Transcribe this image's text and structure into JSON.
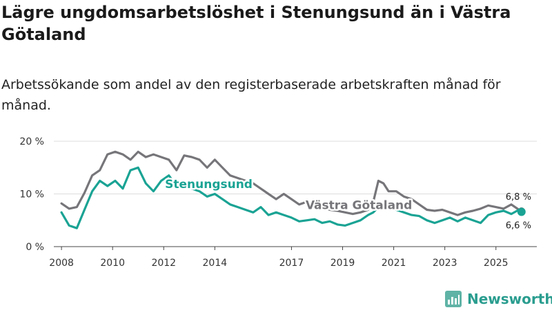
{
  "header": {
    "title": "Lägre ungdomsarbetslöshet i Stenungsund än i Västra Götaland",
    "subtitle": "Arbetssökande som andel av den registerbaserade arbetskraften månad för månad."
  },
  "brand": {
    "name": "Newsworthy"
  },
  "colors": {
    "stenungsund": "#1aa394",
    "vastra": "#76767a",
    "grid": "#dcdcdc",
    "brand": "#2a9d8f"
  },
  "chart_data": {
    "type": "line",
    "title": "Lägre ungdomsarbetslöshet i Stenungsund än i Västra Götaland",
    "xlabel": "",
    "ylabel": "",
    "unit": "%",
    "xlim": [
      2007.7,
      2026.6
    ],
    "ylim": [
      0,
      20
    ],
    "x_ticks": [
      2008,
      2010,
      2012,
      2014,
      2017,
      2019,
      2021,
      2023,
      2025
    ],
    "x_tick_labels": [
      "2008",
      "2010",
      "2012",
      "2014",
      "2017",
      "2019",
      "2021",
      "2023",
      "2025"
    ],
    "y_ticks": [
      0,
      10,
      20
    ],
    "y_tick_labels": [
      "0 %",
      "10 %",
      "20 %"
    ],
    "grid": true,
    "series": [
      {
        "name": "Västra Götaland",
        "label": "Västra Götaland",
        "end_label": "6,8 %",
        "end_value": 6.8,
        "x": [
          2008.0,
          2008.3,
          2008.6,
          2008.9,
          2009.2,
          2009.5,
          2009.8,
          2010.1,
          2010.4,
          2010.7,
          2011.0,
          2011.3,
          2011.6,
          2011.9,
          2012.2,
          2012.5,
          2012.8,
          2013.1,
          2013.4,
          2013.7,
          2014.0,
          2014.3,
          2014.6,
          2014.9,
          2015.2,
          2015.5,
          2015.8,
          2016.1,
          2016.4,
          2016.7,
          2017.0,
          2017.3,
          2017.6,
          2017.9,
          2018.2,
          2018.5,
          2018.8,
          2019.1,
          2019.4,
          2019.7,
          2020.0,
          2020.2,
          2020.4,
          2020.6,
          2020.8,
          2021.1,
          2021.4,
          2021.7,
          2022.0,
          2022.3,
          2022.6,
          2022.9,
          2023.2,
          2023.5,
          2023.8,
          2024.1,
          2024.4,
          2024.7,
          2025.0,
          2025.3,
          2025.6,
          2025.9,
          2026.0
        ],
        "values": [
          8.2,
          7.2,
          7.5,
          10.2,
          13.5,
          14.5,
          17.5,
          18.0,
          17.5,
          16.5,
          18.0,
          17.0,
          17.5,
          17.0,
          16.5,
          14.5,
          17.3,
          17.0,
          16.5,
          15.0,
          16.5,
          15.0,
          13.5,
          13.0,
          12.5,
          12.0,
          11.0,
          10.0,
          9.0,
          10.0,
          9.0,
          8.0,
          8.5,
          8.0,
          7.5,
          7.0,
          6.8,
          6.5,
          6.2,
          6.5,
          7.0,
          8.5,
          12.5,
          12.0,
          10.5,
          10.5,
          9.5,
          9.0,
          8.0,
          7.0,
          6.8,
          7.0,
          6.5,
          6.0,
          6.5,
          6.8,
          7.2,
          7.8,
          7.5,
          7.2,
          8.0,
          7.0,
          6.8
        ]
      },
      {
        "name": "Stenungsund",
        "label": "Stenungsund",
        "end_label": "6,6 %",
        "end_value": 6.6,
        "x": [
          2008.0,
          2008.3,
          2008.6,
          2008.9,
          2009.2,
          2009.5,
          2009.8,
          2010.1,
          2010.4,
          2010.7,
          2011.0,
          2011.3,
          2011.6,
          2011.9,
          2012.2,
          2012.5,
          2012.8,
          2013.1,
          2013.4,
          2013.7,
          2014.0,
          2014.3,
          2014.6,
          2014.9,
          2015.2,
          2015.5,
          2015.8,
          2016.1,
          2016.4,
          2016.7,
          2017.0,
          2017.3,
          2017.6,
          2017.9,
          2018.2,
          2018.5,
          2018.8,
          2019.1,
          2019.4,
          2019.7,
          2020.0,
          2020.2,
          2020.4,
          2020.6,
          2020.8,
          2021.1,
          2021.4,
          2021.7,
          2022.0,
          2022.3,
          2022.6,
          2022.9,
          2023.2,
          2023.5,
          2023.8,
          2024.1,
          2024.4,
          2024.7,
          2025.0,
          2025.3,
          2025.6,
          2025.9,
          2026.0
        ],
        "values": [
          6.5,
          4.0,
          3.5,
          7.0,
          10.5,
          12.5,
          11.5,
          12.5,
          11.0,
          14.5,
          15.0,
          12.0,
          10.5,
          12.5,
          13.5,
          11.5,
          12.0,
          11.0,
          10.5,
          9.5,
          10.0,
          9.0,
          8.0,
          7.5,
          7.0,
          6.5,
          7.5,
          6.0,
          6.5,
          6.0,
          5.5,
          4.8,
          5.0,
          5.2,
          4.5,
          4.8,
          4.2,
          4.0,
          4.5,
          5.0,
          6.0,
          6.5,
          7.5,
          8.0,
          7.5,
          7.0,
          6.5,
          6.0,
          5.8,
          5.0,
          4.5,
          5.0,
          5.5,
          4.8,
          5.5,
          5.0,
          4.5,
          6.0,
          6.5,
          6.8,
          6.2,
          7.0,
          6.6
        ]
      }
    ]
  }
}
